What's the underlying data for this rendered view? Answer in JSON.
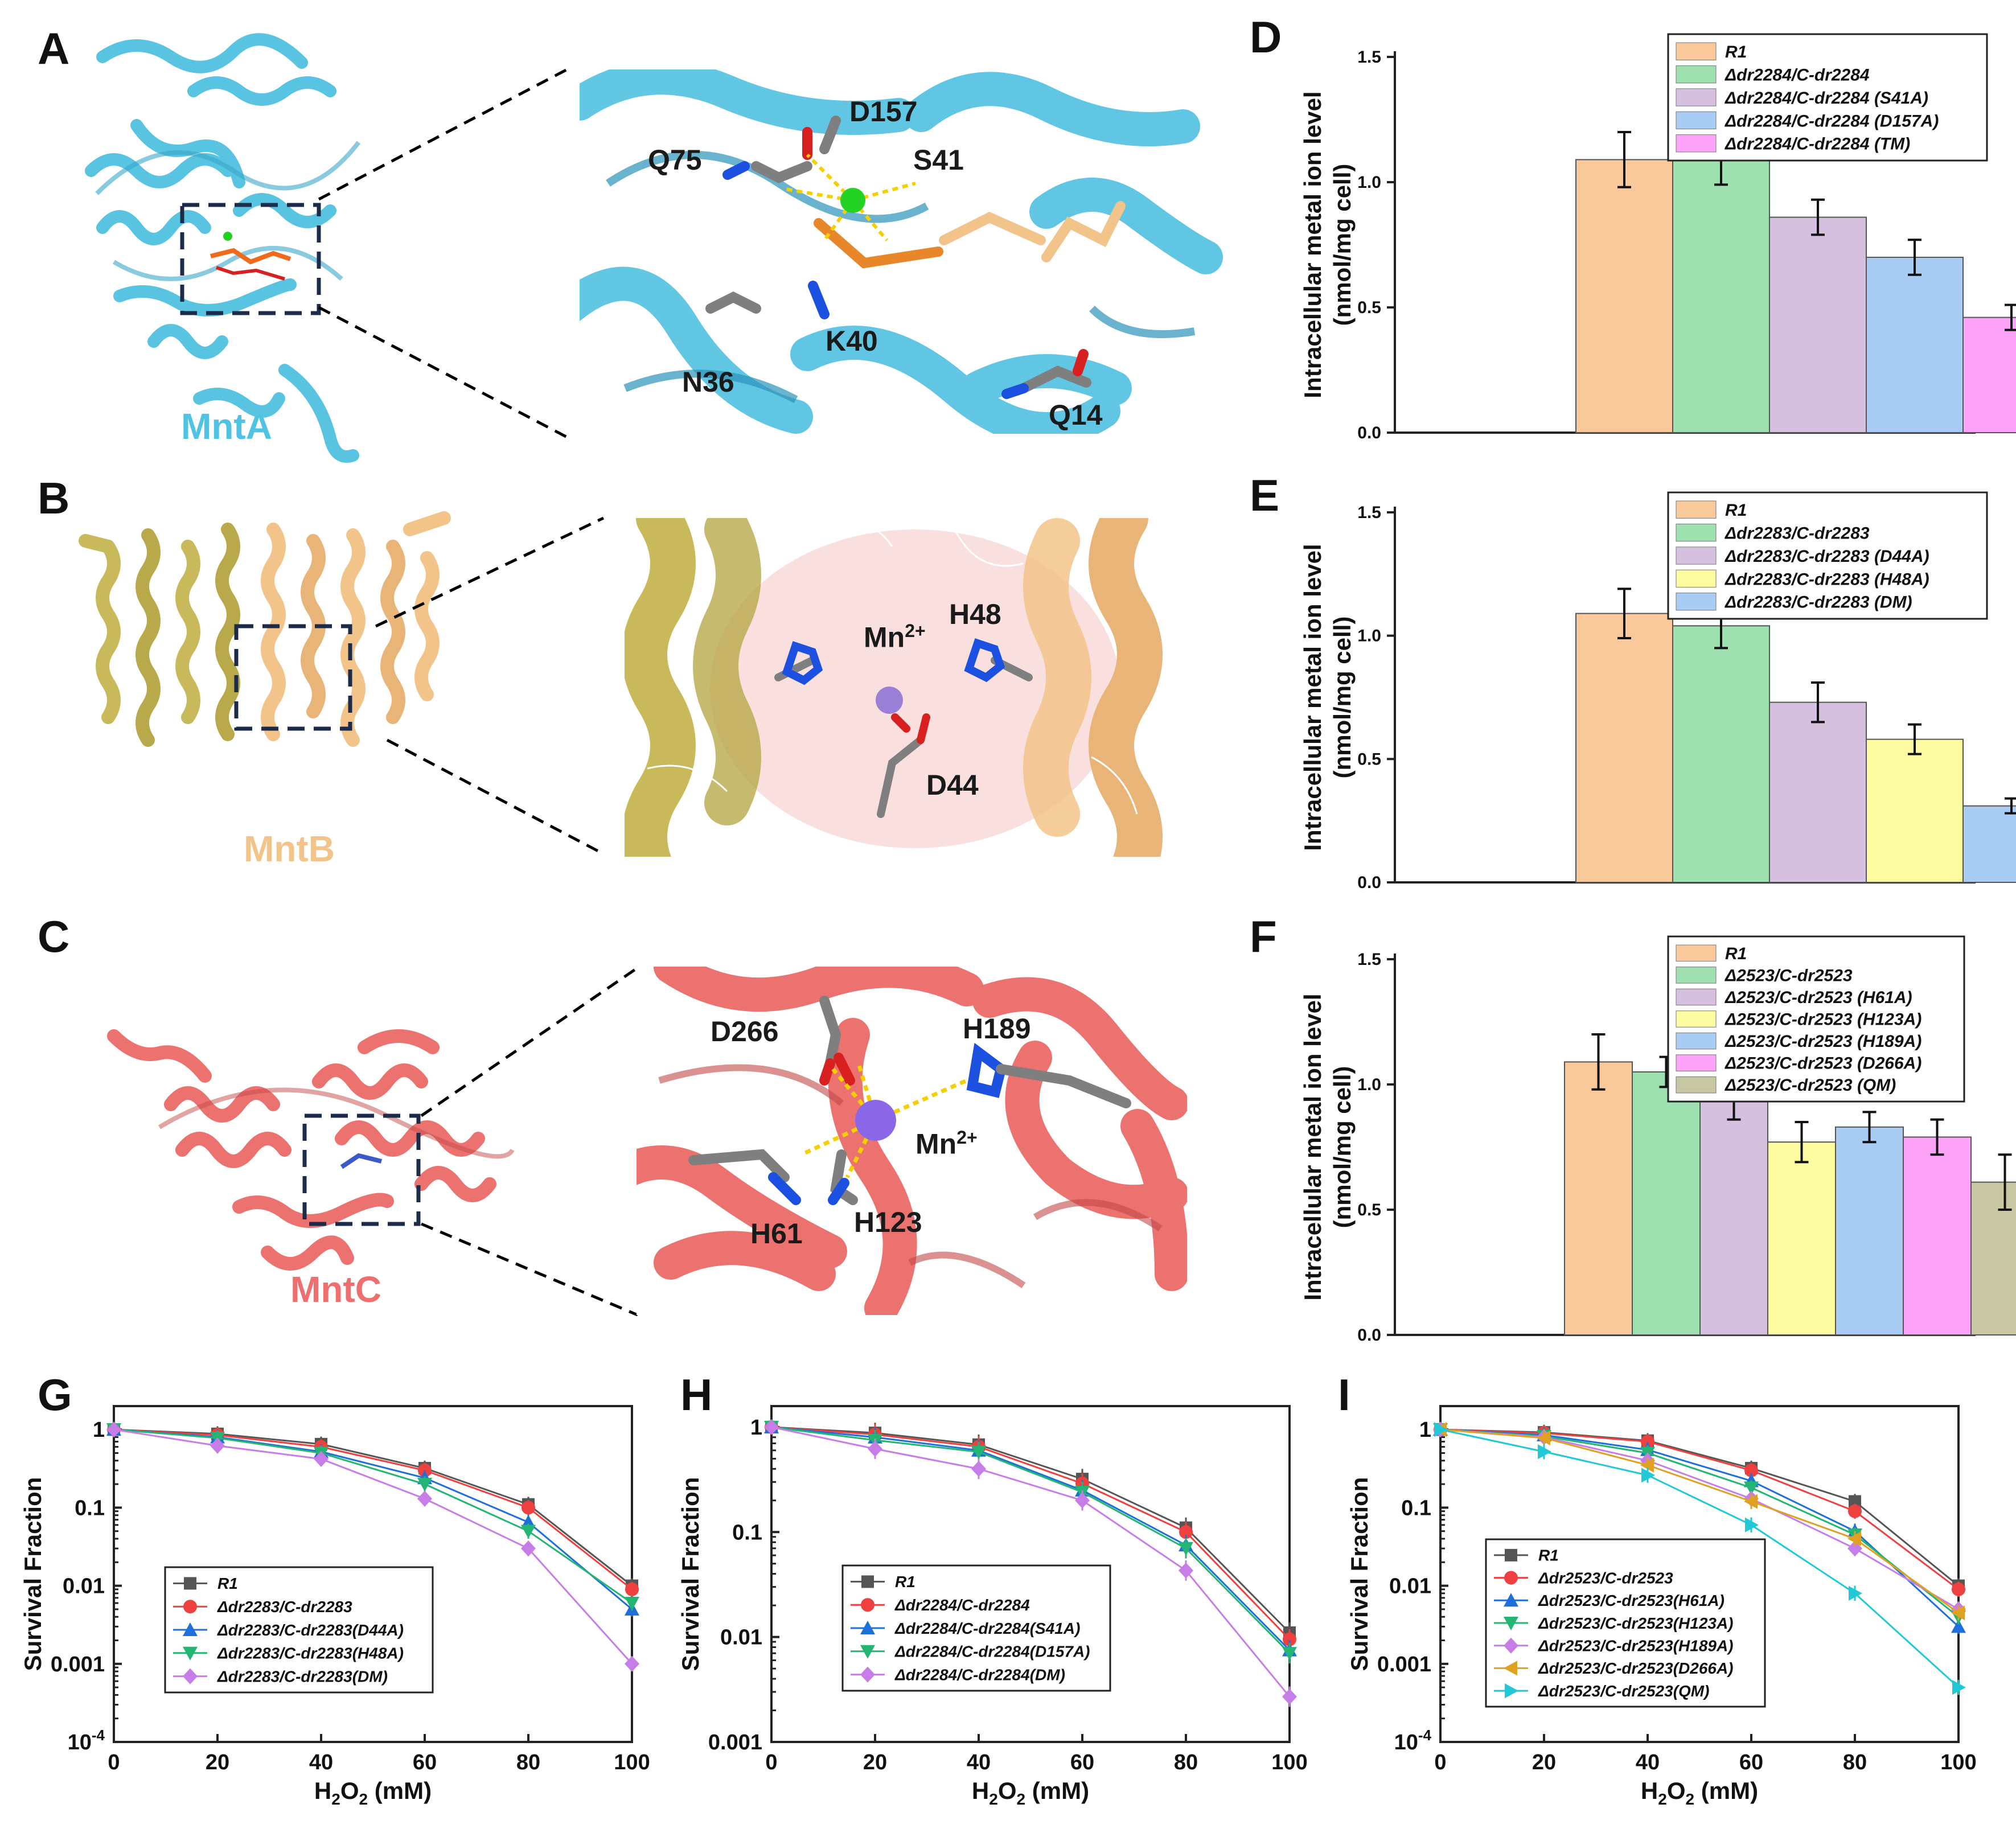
{
  "panels": {
    "A": {
      "letter": "A",
      "protein": "MntA",
      "residues": [
        "D157",
        "Q75",
        "S41",
        "K40",
        "N36",
        "Q14"
      ]
    },
    "B": {
      "letter": "B",
      "protein": "MntB",
      "ion": "Mn",
      "ion_charge": "2+",
      "residues": [
        "H48",
        "D44"
      ]
    },
    "C": {
      "letter": "C",
      "protein": "MntC",
      "ion": "Mn",
      "ion_charge": "2+",
      "residues": [
        "D266",
        "H189",
        "H61",
        "H123"
      ]
    },
    "D": {
      "letter": "D"
    },
    "E": {
      "letter": "E"
    },
    "F": {
      "letter": "F"
    },
    "G": {
      "letter": "G"
    },
    "H": {
      "letter": "H"
    },
    "I": {
      "letter": "I"
    }
  },
  "colors": {
    "mnta": "#58c4e2",
    "mntb_tan": "#f2c48a",
    "mntb_olive": "#c8b95a",
    "mntc": "#ec7270",
    "mnta_label": "#4fc3e4",
    "mntb_label": "#f3c48a",
    "mntc_label": "#ee6f6d"
  },
  "chart_data": [
    {
      "id": "D",
      "type": "bar",
      "ylabel": "Intracellular metal ion level",
      "ylabel2": "(nmol/mg cell)",
      "ylim": [
        0,
        1.5
      ],
      "yticks": [
        "0.0",
        "0.5",
        "1.0",
        "1.5"
      ],
      "legend_position": "top-right",
      "series": [
        {
          "name": "R1",
          "value": 1.09,
          "error": 0.11,
          "color": "#f9c99b"
        },
        {
          "name": "Δdr2284/C-dr2284",
          "value": 1.11,
          "error": 0.12,
          "color": "#9ee0b0"
        },
        {
          "name": "Δdr2284/C-dr2284 (S41A)",
          "value": 0.86,
          "error": 0.07,
          "color": "#d5c0e0"
        },
        {
          "name": "Δdr2284/C-dr2284 (D157A)",
          "value": 0.7,
          "error": 0.07,
          "color": "#a8ccf4"
        },
        {
          "name": "Δdr2284/C-dr2284 (TM)",
          "value": 0.46,
          "error": 0.05,
          "color": "#fea4f8"
        }
      ]
    },
    {
      "id": "E",
      "type": "bar",
      "ylabel": "Intracellular metal ion level",
      "ylabel2": "(nmol/mg cell)",
      "ylim": [
        0,
        1.5
      ],
      "yticks": [
        "0.0",
        "0.5",
        "1.0",
        "1.5"
      ],
      "legend_position": "top-right",
      "series": [
        {
          "name": "R1",
          "value": 1.09,
          "error": 0.1,
          "color": "#f9c99b"
        },
        {
          "name": "Δdr2283/C-dr2283",
          "value": 1.04,
          "error": 0.09,
          "color": "#9ee0b0"
        },
        {
          "name": "Δdr2283/C-dr2283 (D44A)",
          "value": 0.73,
          "error": 0.08,
          "color": "#d5c0e0"
        },
        {
          "name": "Δdr2283/C-dr2283 (H48A)",
          "value": 0.58,
          "error": 0.06,
          "color": "#fdfca0"
        },
        {
          "name": "Δdr2283/C-dr2283 (DM)",
          "value": 0.31,
          "error": 0.03,
          "color": "#a8ccf4"
        }
      ]
    },
    {
      "id": "F",
      "type": "bar",
      "ylabel": "Intracellular metal ion level",
      "ylabel2": "(nmol/mg cell)",
      "ylim": [
        0,
        1.5
      ],
      "yticks": [
        "0.0",
        "0.5",
        "1.0",
        "1.5"
      ],
      "legend_position": "top-right",
      "series": [
        {
          "name": "R1",
          "value": 1.09,
          "error": 0.11,
          "color": "#f9c99b"
        },
        {
          "name": "Δ2523/C-dr2523",
          "value": 1.05,
          "error": 0.06,
          "color": "#9ee0b0"
        },
        {
          "name": "Δ2523/C-dr2523 (H61A)",
          "value": 0.94,
          "error": 0.08,
          "color": "#d5c0e0"
        },
        {
          "name": "Δ2523/C-dr2523 (H123A)",
          "value": 0.77,
          "error": 0.08,
          "color": "#fdfca0"
        },
        {
          "name": "Δ2523/C-dr2523 (H189A)",
          "value": 0.83,
          "error": 0.06,
          "color": "#a8ccf4"
        },
        {
          "name": "Δ2523/C-dr2523 (D266A)",
          "value": 0.79,
          "error": 0.07,
          "color": "#fea4f8"
        },
        {
          "name": "Δ2523/C-dr2523 (QM)",
          "value": 0.61,
          "error": 0.11,
          "color": "#c8c7a4"
        }
      ]
    },
    {
      "id": "G",
      "type": "line",
      "yscale": "log",
      "xlabel": "H2O2 (mM)",
      "ylabel": "Survival Fraction",
      "x": [
        0,
        20,
        40,
        60,
        80,
        100
      ],
      "xlim": [
        0,
        100
      ],
      "ylim_exp": [
        -4,
        0.3
      ],
      "yticks": [
        {
          "v": -4,
          "t": "10",
          "sup": "-4"
        },
        {
          "v": -3,
          "t": "0.001"
        },
        {
          "v": -2,
          "t": "0.01"
        },
        {
          "v": -1,
          "t": "0.1"
        },
        {
          "v": 0,
          "t": "1"
        }
      ],
      "legend_position": "bottom-left",
      "series": [
        {
          "name": "R1",
          "color": "#555555",
          "marker": "square",
          "values": [
            1,
            0.88,
            0.65,
            0.32,
            0.11,
            0.01
          ]
        },
        {
          "name": "Δdr2283/C-dr2283",
          "color": "#ef4040",
          "marker": "circle",
          "values": [
            1,
            0.85,
            0.6,
            0.3,
            0.1,
            0.009
          ]
        },
        {
          "name": "Δdr2283/C-dr2283(D44A)",
          "color": "#1e6fd9",
          "marker": "triangle-up",
          "values": [
            1,
            0.8,
            0.52,
            0.24,
            0.065,
            0.005
          ]
        },
        {
          "name": "Δdr2283/C-dr2283(H48A)",
          "color": "#22b573",
          "marker": "triangle-down",
          "values": [
            1,
            0.78,
            0.5,
            0.2,
            0.05,
            0.006
          ]
        },
        {
          "name": "Δdr2283/C-dr2283(DM)",
          "color": "#c77de8",
          "marker": "diamond",
          "values": [
            1,
            0.62,
            0.42,
            0.13,
            0.03,
            0.001
          ]
        }
      ]
    },
    {
      "id": "H",
      "type": "line",
      "yscale": "log",
      "xlabel": "H2O2 (mM)",
      "ylabel": "Survival Fraction",
      "x": [
        0,
        20,
        40,
        60,
        80,
        100
      ],
      "xlim": [
        0,
        100
      ],
      "ylim_exp": [
        -3,
        0.2
      ],
      "yticks": [
        {
          "v": -3,
          "t": "0.001"
        },
        {
          "v": -2,
          "t": "0.01"
        },
        {
          "v": -1,
          "t": "0.1"
        },
        {
          "v": 0,
          "t": "1"
        }
      ],
      "legend_position": "bottom-left",
      "series": [
        {
          "name": "R1",
          "color": "#555555",
          "marker": "square",
          "values": [
            1,
            0.88,
            0.68,
            0.32,
            0.11,
            0.011
          ]
        },
        {
          "name": "Δdr2284/C-dr2284",
          "color": "#ef4040",
          "marker": "circle",
          "values": [
            1,
            0.85,
            0.65,
            0.29,
            0.1,
            0.0095
          ]
        },
        {
          "name": "Δdr2284/C-dr2284(S41A)",
          "color": "#1e6fd9",
          "marker": "triangle-up",
          "values": [
            1,
            0.8,
            0.6,
            0.25,
            0.075,
            0.0075
          ]
        },
        {
          "name": "Δdr2284/C-dr2284(D157A)",
          "color": "#22b573",
          "marker": "triangle-down",
          "values": [
            1,
            0.75,
            0.58,
            0.24,
            0.07,
            0.007
          ]
        },
        {
          "name": "Δdr2284/C-dr2284(DM)",
          "color": "#c77de8",
          "marker": "diamond",
          "values": [
            1,
            0.62,
            0.4,
            0.2,
            0.043,
            0.0027
          ]
        }
      ]
    },
    {
      "id": "I",
      "type": "line",
      "yscale": "log",
      "xlabel": "H2O2 (mM)",
      "ylabel": "Survival Fraction",
      "x": [
        0,
        20,
        40,
        60,
        80,
        100
      ],
      "xlim": [
        0,
        100
      ],
      "ylim_exp": [
        -4,
        0.3
      ],
      "yticks": [
        {
          "v": -4,
          "t": "10",
          "sup": "-4"
        },
        {
          "v": -3,
          "t": "0.001"
        },
        {
          "v": -2,
          "t": "0.01"
        },
        {
          "v": -1,
          "t": "0.1"
        },
        {
          "v": 0,
          "t": "1"
        }
      ],
      "legend_position": "bottom-left",
      "series": [
        {
          "name": "R1",
          "color": "#555555",
          "marker": "square",
          "values": [
            1,
            0.92,
            0.72,
            0.32,
            0.12,
            0.01
          ]
        },
        {
          "name": "Δdr2523/C-dr2523",
          "color": "#ef4040",
          "marker": "circle",
          "values": [
            1,
            0.9,
            0.7,
            0.3,
            0.09,
            0.009
          ]
        },
        {
          "name": "Δdr2523/C-dr2523(H61A)",
          "color": "#1e6fd9",
          "marker": "triangle-up",
          "values": [
            1,
            0.85,
            0.55,
            0.22,
            0.05,
            0.003
          ]
        },
        {
          "name": "Δdr2523/C-dr2523(H123A)",
          "color": "#22b573",
          "marker": "triangle-down",
          "values": [
            1,
            0.82,
            0.5,
            0.18,
            0.045,
            0.004
          ]
        },
        {
          "name": "Δdr2523/C-dr2523(H189A)",
          "color": "#c77de8",
          "marker": "diamond",
          "values": [
            1,
            0.8,
            0.4,
            0.13,
            0.03,
            0.005
          ]
        },
        {
          "name": "Δdr2523/C-dr2523(D266A)",
          "color": "#e0a020",
          "marker": "triangle-left",
          "values": [
            1,
            0.78,
            0.35,
            0.12,
            0.04,
            0.0045
          ]
        },
        {
          "name": "Δdr2523/C-dr2523(QM)",
          "color": "#20c8d8",
          "marker": "triangle-right",
          "values": [
            1,
            0.52,
            0.26,
            0.06,
            0.008,
            0.0005
          ]
        }
      ]
    }
  ]
}
